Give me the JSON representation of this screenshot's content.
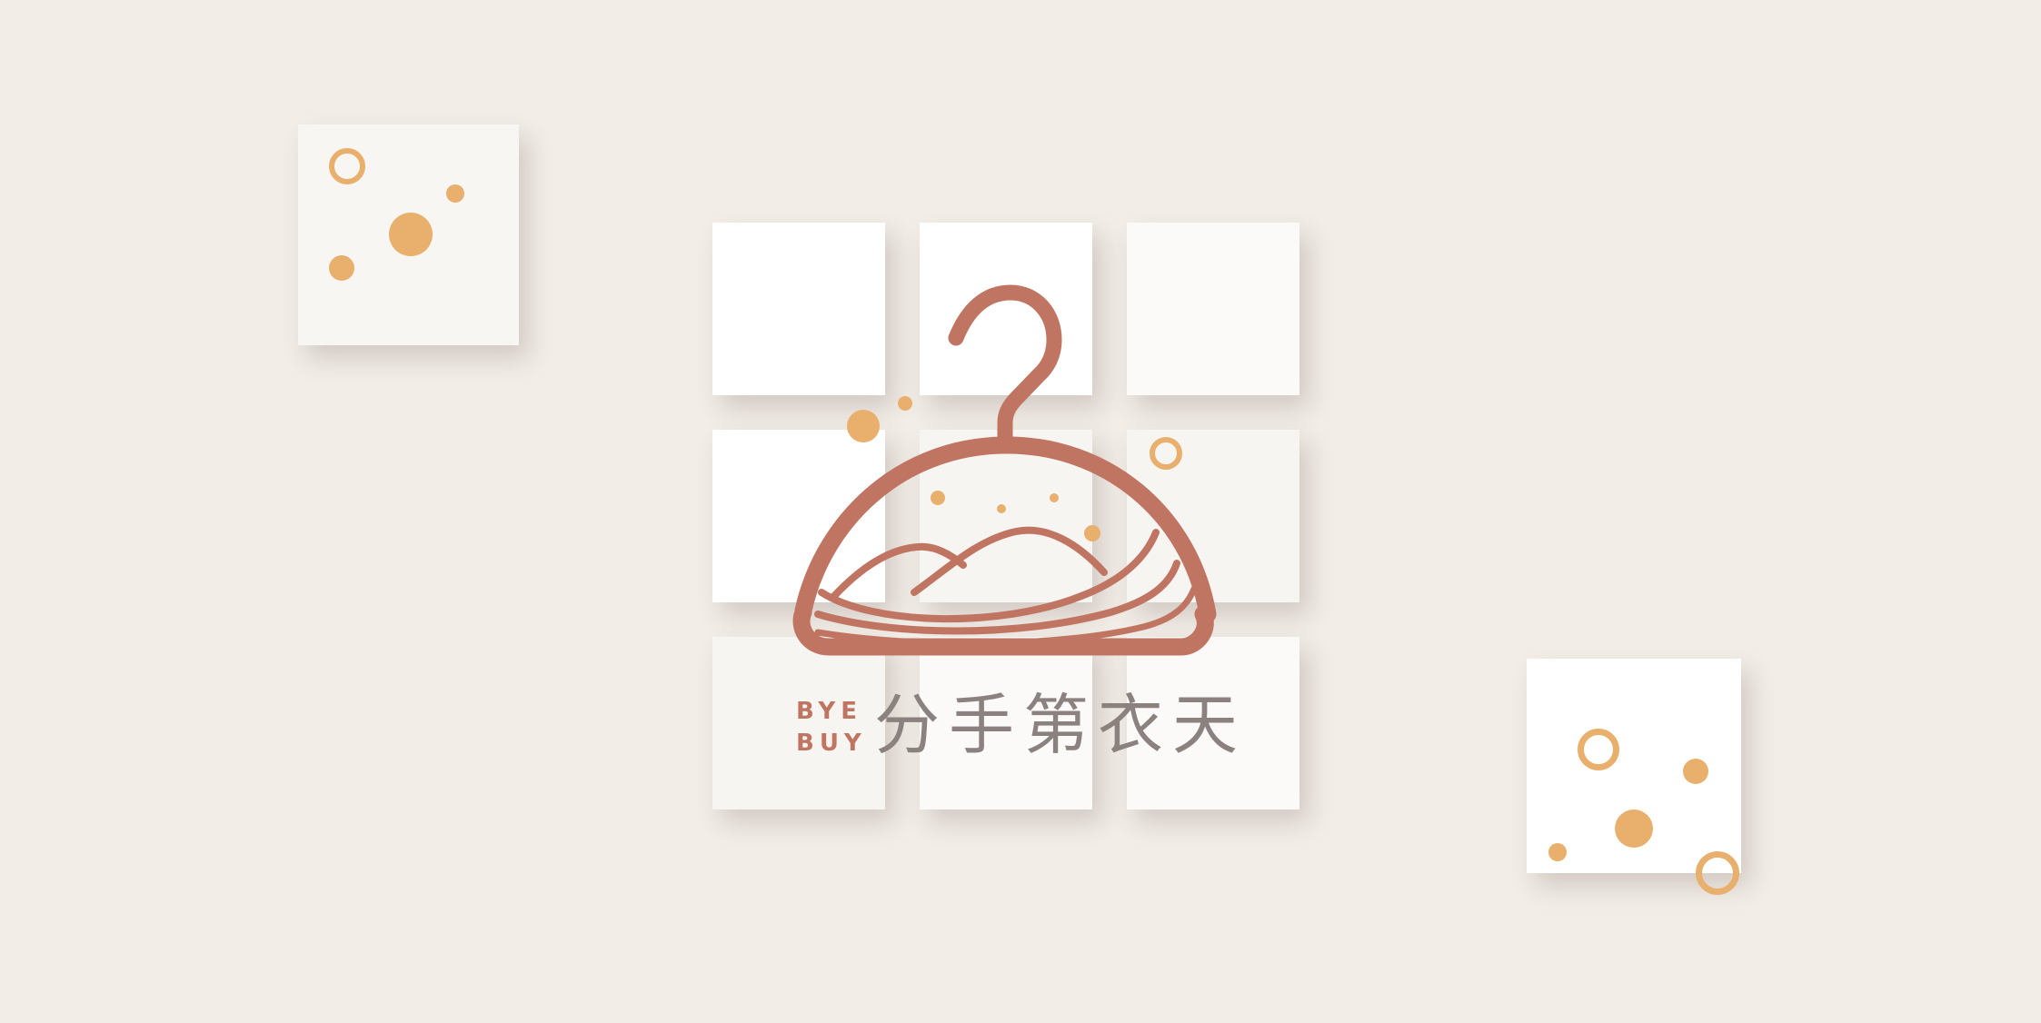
{
  "brand": {
    "english_line_1": "BYE",
    "english_line_2": "BUY",
    "chinese_name": "分手第衣天"
  },
  "colors": {
    "background": "#f2ede7",
    "logo_primary": "#c07562",
    "accent_dot": "#e8b06c",
    "text_gray": "#8b8280",
    "tile": "#fbfaf8"
  },
  "icons": {
    "logo": "clothes-hanger-icon",
    "decor": "bubble-dots"
  }
}
